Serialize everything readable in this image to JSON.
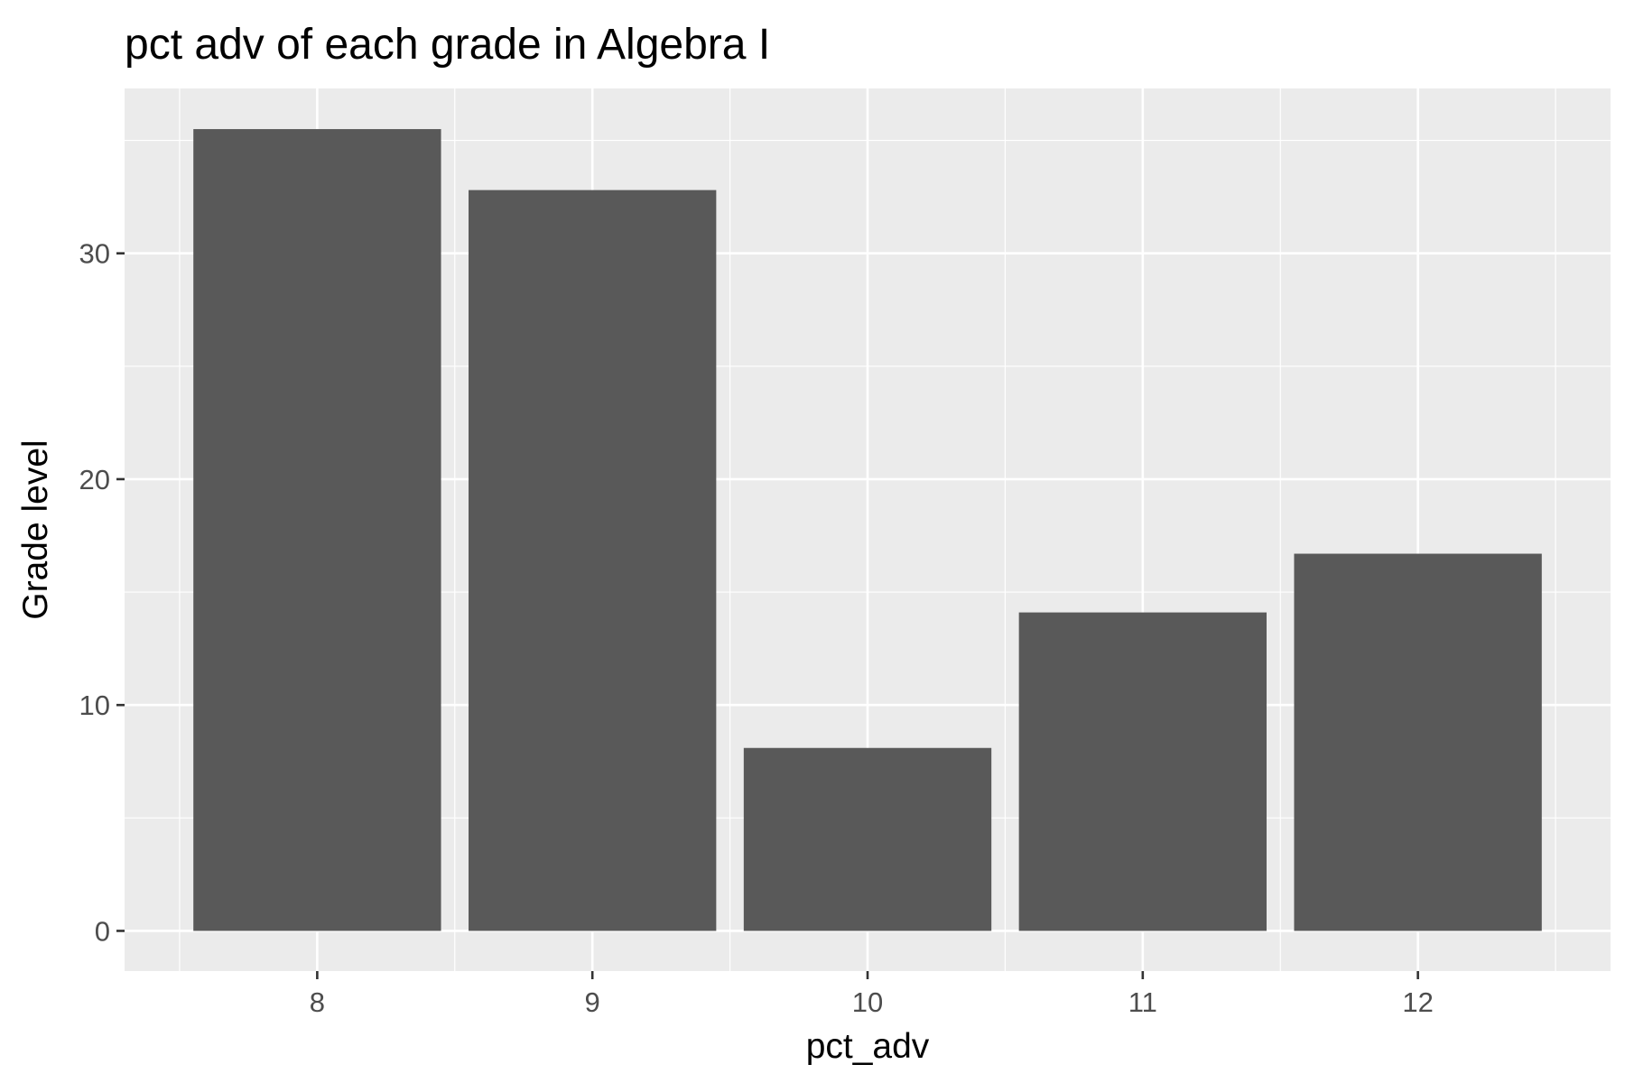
{
  "chart_data": {
    "type": "bar",
    "title": "pct adv of each grade in Algebra I",
    "xlabel": "pct_adv",
    "ylabel": "Grade level",
    "categories": [
      "8",
      "9",
      "10",
      "11",
      "12"
    ],
    "values": [
      35.5,
      32.8,
      8.1,
      14.1,
      16.7
    ],
    "ylim": [
      -1.78,
      37.3
    ],
    "yticks": [
      "0",
      "10",
      "20",
      "30"
    ],
    "grid": true,
    "colors": {
      "bar": "#595959",
      "panel": "#ebebeb",
      "grid": "#ffffff",
      "tick": "#333333"
    }
  }
}
